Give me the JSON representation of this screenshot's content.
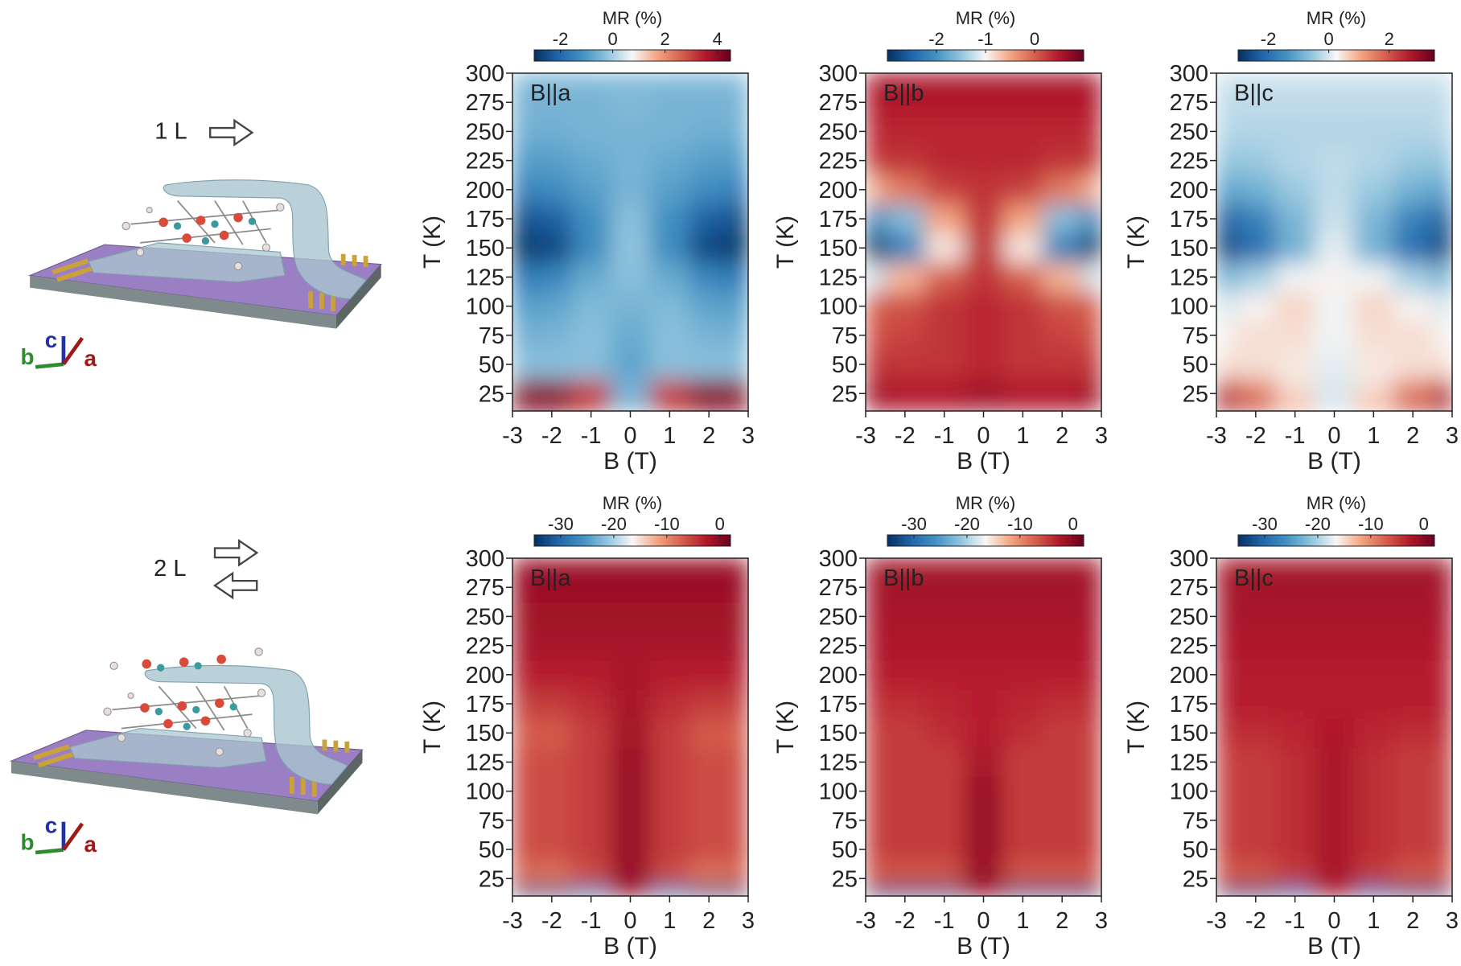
{
  "illustrations": [
    {
      "label": "1 L",
      "axes": [
        "b",
        "c",
        "a"
      ]
    },
    {
      "label": "2 L",
      "axes": [
        "b",
        "c",
        "a"
      ]
    }
  ],
  "chart_data": [
    {
      "type": "heatmap",
      "text": "B||a",
      "xlabel": "B (T)",
      "ylabel": "T (K)",
      "colorbar_label": "MR (%)",
      "colormap": [
        "#053061",
        "#2166ac",
        "#4393c3",
        "#92c5de",
        "#f7f7f7",
        "#f4a582",
        "#d6604d",
        "#b2182b",
        "#67001f"
      ],
      "clim": [
        -3,
        4.5
      ],
      "cticks": [
        -2,
        0,
        2,
        4
      ],
      "xlim": [
        -3,
        3
      ],
      "xticks": [
        -3,
        -2,
        -1,
        0,
        1,
        2,
        3
      ],
      "ylim": [
        10,
        300
      ],
      "yticks": [
        25,
        50,
        75,
        100,
        125,
        150,
        175,
        200,
        225,
        250,
        275,
        300
      ],
      "x": [
        -3,
        -2,
        -1,
        0,
        1,
        2,
        3
      ],
      "y": [
        15,
        25,
        50,
        75,
        100,
        125,
        150,
        175,
        200,
        225,
        250,
        275,
        300
      ],
      "values": [
        [
          4.3,
          4.3,
          3.5,
          -0.5,
          3.5,
          4.3,
          4.3
        ],
        [
          4,
          4,
          3,
          -0.5,
          3,
          4,
          4
        ],
        [
          -0.3,
          -0.3,
          -0.3,
          -0.8,
          -0.3,
          -0.3,
          -0.3
        ],
        [
          -0.6,
          -0.5,
          -0.3,
          -0.7,
          -0.3,
          -0.5,
          -0.6
        ],
        [
          -1,
          -0.8,
          -0.4,
          -0.5,
          -0.4,
          -0.8,
          -1
        ],
        [
          -1.8,
          -1.4,
          -0.7,
          -0.3,
          -0.7,
          -1.4,
          -1.8
        ],
        [
          -3,
          -2.6,
          -1.3,
          -0.2,
          -1.3,
          -2.6,
          -3
        ],
        [
          -2.6,
          -2.2,
          -1.2,
          -0.3,
          -1.2,
          -2.2,
          -2.6
        ],
        [
          -1.6,
          -1.3,
          -0.9,
          -0.5,
          -0.9,
          -1.3,
          -1.6
        ],
        [
          -1,
          -0.9,
          -0.7,
          -0.5,
          -0.7,
          -0.9,
          -1
        ],
        [
          -0.6,
          -0.6,
          -0.5,
          -0.5,
          -0.5,
          -0.6,
          -0.6
        ],
        [
          -0.5,
          -0.5,
          -0.5,
          -0.4,
          -0.5,
          -0.5,
          -0.5
        ],
        [
          -0.4,
          -0.4,
          -0.4,
          -0.4,
          -0.4,
          -0.4,
          -0.4
        ]
      ]
    },
    {
      "type": "heatmap",
      "text": "B||b",
      "xlabel": "B (T)",
      "ylabel": "T (K)",
      "colorbar_label": "MR (%)",
      "colormap": [
        "#053061",
        "#2166ac",
        "#4393c3",
        "#92c5de",
        "#f7f7f7",
        "#f4a582",
        "#d6604d",
        "#b2182b",
        "#67001f"
      ],
      "clim": [
        -3,
        1
      ],
      "cticks": [
        -2,
        -1,
        0
      ],
      "xlim": [
        -3,
        3
      ],
      "xticks": [
        -3,
        -2,
        -1,
        0,
        1,
        2,
        3
      ],
      "ylim": [
        10,
        300
      ],
      "yticks": [
        25,
        50,
        75,
        100,
        125,
        150,
        175,
        200,
        225,
        250,
        275,
        300
      ],
      "x": [
        -3,
        -2,
        -1,
        0,
        1,
        2,
        3
      ],
      "y": [
        15,
        25,
        50,
        75,
        100,
        125,
        150,
        175,
        200,
        225,
        250,
        275,
        300
      ],
      "values": [
        [
          0.6,
          0.5,
          0.5,
          0.6,
          0.5,
          0.5,
          0.6
        ],
        [
          0.6,
          0.5,
          0.5,
          0.6,
          0.5,
          0.5,
          0.6
        ],
        [
          0.3,
          0.3,
          0.3,
          0.4,
          0.3,
          0.3,
          0.3
        ],
        [
          0.1,
          0.2,
          0.3,
          0.4,
          0.3,
          0.2,
          0.1
        ],
        [
          0,
          0.1,
          0.3,
          0.4,
          0.3,
          0.1,
          0
        ],
        [
          -1.2,
          -0.6,
          0,
          0.3,
          0,
          -0.6,
          -1.2
        ],
        [
          -3,
          -2.2,
          -0.9,
          0.3,
          -0.9,
          -2.2,
          -3
        ],
        [
          -2.2,
          -1.6,
          -0.5,
          0.3,
          -0.5,
          -1.6,
          -2.2
        ],
        [
          -0.6,
          -0.2,
          0.2,
          0.3,
          0.2,
          -0.2,
          -0.6
        ],
        [
          0.3,
          0.3,
          0.4,
          0.4,
          0.4,
          0.3,
          0.3
        ],
        [
          0.4,
          0.4,
          0.4,
          0.4,
          0.4,
          0.4,
          0.4
        ],
        [
          0.5,
          0.5,
          0.5,
          0.5,
          0.5,
          0.5,
          0.5
        ],
        [
          0.6,
          0.6,
          0.6,
          0.6,
          0.6,
          0.6,
          0.6
        ]
      ]
    },
    {
      "type": "heatmap",
      "text": "B||c",
      "xlabel": "B (T)",
      "ylabel": "T (K)",
      "colorbar_label": "MR (%)",
      "colormap": [
        "#053061",
        "#2166ac",
        "#4393c3",
        "#92c5de",
        "#f7f7f7",
        "#f4a582",
        "#d6604d",
        "#b2182b",
        "#67001f"
      ],
      "clim": [
        -3,
        3.5
      ],
      "cticks": [
        -2,
        0,
        2
      ],
      "xlim": [
        -3,
        3
      ],
      "xticks": [
        -3,
        -2,
        -1,
        0,
        1,
        2,
        3
      ],
      "ylim": [
        10,
        300
      ],
      "yticks": [
        25,
        50,
        75,
        100,
        125,
        150,
        175,
        200,
        225,
        250,
        275,
        300
      ],
      "x": [
        -3,
        -2,
        -1,
        0,
        1,
        2,
        3
      ],
      "y": [
        15,
        25,
        50,
        75,
        100,
        125,
        150,
        175,
        200,
        225,
        250,
        275,
        300
      ],
      "values": [
        [
          3,
          2.2,
          1,
          0,
          1,
          2.2,
          3
        ],
        [
          2.5,
          1.5,
          0.5,
          0,
          0.5,
          1.5,
          2.5
        ],
        [
          0.5,
          0.5,
          0.4,
          0.1,
          0.4,
          0.5,
          0.5
        ],
        [
          0.3,
          0.5,
          0.5,
          0.2,
          0.5,
          0.5,
          0.3
        ],
        [
          0,
          0.3,
          0.6,
          0.2,
          0.6,
          0.3,
          0
        ],
        [
          -0.9,
          -0.4,
          0.2,
          0.3,
          0.2,
          -0.4,
          -0.9
        ],
        [
          -2.8,
          -2,
          -0.9,
          0.1,
          -0.9,
          -2,
          -2.8
        ],
        [
          -2.4,
          -1.7,
          -0.8,
          -0.1,
          -0.8,
          -1.7,
          -2.4
        ],
        [
          -1.2,
          -0.9,
          -0.5,
          -0.2,
          -0.5,
          -0.9,
          -1.2
        ],
        [
          -0.6,
          -0.5,
          -0.3,
          -0.2,
          -0.3,
          -0.5,
          -0.6
        ],
        [
          -0.3,
          -0.3,
          -0.3,
          -0.3,
          -0.3,
          -0.3,
          -0.3
        ],
        [
          -0.2,
          -0.2,
          -0.2,
          -0.2,
          -0.2,
          -0.2,
          -0.2
        ],
        [
          -0.1,
          -0.1,
          -0.1,
          -0.1,
          -0.1,
          -0.1,
          -0.1
        ]
      ]
    },
    {
      "type": "heatmap",
      "text": "B||a",
      "xlabel": "B (T)",
      "ylabel": "T (K)",
      "colorbar_label": "MR (%)",
      "colormap": [
        "#053061",
        "#2166ac",
        "#4393c3",
        "#92c5de",
        "#f7f7f7",
        "#f4a582",
        "#d6604d",
        "#b2182b",
        "#67001f"
      ],
      "clim": [
        -35,
        2
      ],
      "cticks": [
        -30,
        -20,
        -10,
        0
      ],
      "xlim": [
        -3,
        3
      ],
      "xticks": [
        -3,
        -2,
        -1,
        0,
        1,
        2,
        3
      ],
      "ylim": [
        10,
        300
      ],
      "yticks": [
        25,
        50,
        75,
        100,
        125,
        150,
        175,
        200,
        225,
        250,
        275,
        300
      ],
      "x": [
        -3,
        -2,
        -1,
        0,
        1,
        2,
        3
      ],
      "y": [
        15,
        25,
        50,
        75,
        100,
        125,
        150,
        175,
        200,
        225,
        250,
        275,
        300
      ],
      "values": [
        [
          -33,
          -33,
          -28,
          -1,
          -28,
          -33,
          -33
        ],
        [
          -8,
          -9,
          -6,
          -1,
          -6,
          -9,
          -8
        ],
        [
          -6,
          -6,
          -5,
          -1,
          -5,
          -6,
          -6
        ],
        [
          -6,
          -6,
          -5,
          -1,
          -5,
          -6,
          -6
        ],
        [
          -6,
          -6,
          -5,
          -1,
          -5,
          -6,
          -6
        ],
        [
          -6,
          -6,
          -5,
          -1,
          -5,
          -6,
          -6
        ],
        [
          -7,
          -7,
          -5,
          -1.5,
          -5,
          -7,
          -7
        ],
        [
          -5,
          -5,
          -4,
          -2,
          -4,
          -5,
          -5
        ],
        [
          -3,
          -3,
          -3,
          -2,
          -3,
          -3,
          -3
        ],
        [
          -2,
          -2,
          -2,
          -2,
          -2,
          -2,
          -2
        ],
        [
          -1.5,
          -1.5,
          -1.5,
          -1.5,
          -1.5,
          -1.5,
          -1.5
        ],
        [
          -1.2,
          -1.2,
          -1.2,
          -1.2,
          -1.2,
          -1.2,
          -1.2
        ],
        [
          -1,
          -1,
          -1,
          -1,
          -1,
          -1,
          -1
        ]
      ]
    },
    {
      "type": "heatmap",
      "text": "B||b",
      "xlabel": "B (T)",
      "ylabel": "T (K)",
      "colorbar_label": "MR (%)",
      "colormap": [
        "#053061",
        "#2166ac",
        "#4393c3",
        "#92c5de",
        "#f7f7f7",
        "#f4a582",
        "#d6604d",
        "#b2182b",
        "#67001f"
      ],
      "clim": [
        -35,
        2
      ],
      "cticks": [
        -30,
        -20,
        -10,
        0
      ],
      "xlim": [
        -3,
        3
      ],
      "xticks": [
        -3,
        -2,
        -1,
        0,
        1,
        2,
        3
      ],
      "ylim": [
        10,
        300
      ],
      "yticks": [
        25,
        50,
        75,
        100,
        125,
        150,
        175,
        200,
        225,
        250,
        275,
        300
      ],
      "x": [
        -3,
        -2,
        -1,
        0,
        1,
        2,
        3
      ],
      "y": [
        15,
        25,
        50,
        75,
        100,
        125,
        150,
        175,
        200,
        225,
        250,
        275,
        300
      ],
      "values": [
        [
          -33,
          -33,
          -33,
          -1,
          -33,
          -33,
          -33
        ],
        [
          -7,
          -7,
          -7,
          -1,
          -7,
          -7,
          -7
        ],
        [
          -5,
          -5,
          -5,
          -1,
          -5,
          -5,
          -5
        ],
        [
          -5,
          -5,
          -5,
          -1,
          -5,
          -5,
          -5
        ],
        [
          -5,
          -5,
          -5,
          -1,
          -5,
          -5,
          -5
        ],
        [
          -5,
          -5,
          -5,
          -2,
          -5,
          -5,
          -5
        ],
        [
          -5,
          -5,
          -4,
          -3,
          -4,
          -5,
          -5
        ],
        [
          -4,
          -4,
          -3.5,
          -3,
          -3.5,
          -4,
          -4
        ],
        [
          -3,
          -3,
          -3,
          -3,
          -3,
          -3,
          -3
        ],
        [
          -2.5,
          -2.5,
          -2.5,
          -2.5,
          -2.5,
          -2.5,
          -2.5
        ],
        [
          -2,
          -2,
          -2,
          -2,
          -2,
          -2,
          -2
        ],
        [
          -1.8,
          -1.8,
          -1.8,
          -1.8,
          -1.8,
          -1.8,
          -1.8
        ],
        [
          -1.5,
          -1.5,
          -1.5,
          -1.5,
          -1.5,
          -1.5,
          -1.5
        ]
      ]
    },
    {
      "type": "heatmap",
      "text": "B||c",
      "xlabel": "B (T)",
      "ylabel": "T (K)",
      "colorbar_label": "MR (%)",
      "colormap": [
        "#053061",
        "#2166ac",
        "#4393c3",
        "#92c5de",
        "#f7f7f7",
        "#f4a582",
        "#d6604d",
        "#b2182b",
        "#67001f"
      ],
      "clim": [
        -35,
        2
      ],
      "cticks": [
        -30,
        -20,
        -10,
        0
      ],
      "xlim": [
        -3,
        3
      ],
      "xticks": [
        -3,
        -2,
        -1,
        0,
        1,
        2,
        3
      ],
      "ylim": [
        10,
        300
      ],
      "yticks": [
        25,
        50,
        75,
        100,
        125,
        150,
        175,
        200,
        225,
        250,
        275,
        300
      ],
      "x": [
        -3,
        -2,
        -1,
        0,
        1,
        2,
        3
      ],
      "y": [
        15,
        25,
        50,
        75,
        100,
        125,
        150,
        175,
        200,
        225,
        250,
        275,
        300
      ],
      "values": [
        [
          -33,
          -33,
          -30,
          -2,
          -30,
          -33,
          -33
        ],
        [
          -7,
          -7,
          -5,
          -2,
          -5,
          -7,
          -7
        ],
        [
          -5,
          -5,
          -4,
          -2,
          -4,
          -5,
          -5
        ],
        [
          -5,
          -5,
          -4,
          -2,
          -4,
          -5,
          -5
        ],
        [
          -5,
          -5,
          -4,
          -2,
          -4,
          -5,
          -5
        ],
        [
          -5,
          -5,
          -4,
          -2,
          -4,
          -5,
          -5
        ],
        [
          -4,
          -4,
          -3.5,
          -2.5,
          -3.5,
          -4,
          -4
        ],
        [
          -3,
          -3,
          -3,
          -3,
          -3,
          -3,
          -3
        ],
        [
          -3,
          -3,
          -3,
          -3,
          -3,
          -3,
          -3
        ],
        [
          -2.5,
          -2.5,
          -2.5,
          -2.5,
          -2.5,
          -2.5,
          -2.5
        ],
        [
          -2,
          -2,
          -2,
          -2,
          -2,
          -2,
          -2
        ],
        [
          -1.8,
          -1.8,
          -1.8,
          -1.8,
          -1.8,
          -1.8,
          -1.8
        ],
        [
          -1.5,
          -1.5,
          -1.5,
          -1.5,
          -1.5,
          -1.5,
          -1.5
        ]
      ]
    }
  ]
}
